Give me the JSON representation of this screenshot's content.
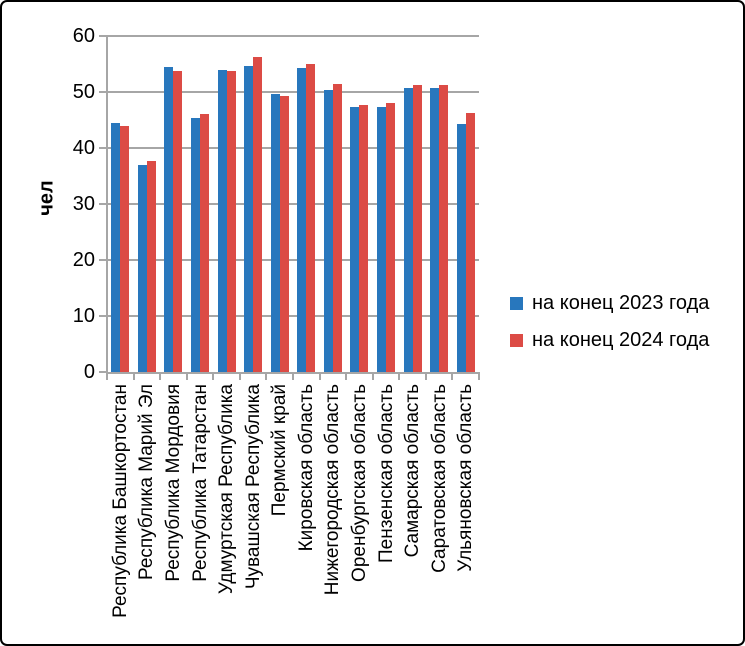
{
  "chart_data": {
    "type": "bar",
    "title": "",
    "ylabel": "чел",
    "xlabel": "",
    "ylim": [
      0,
      60
    ],
    "yticks": [
      0,
      10,
      20,
      30,
      40,
      50,
      60
    ],
    "grid": true,
    "legend_position": "right-center",
    "categories": [
      "Республика Башкортостан",
      "Республика Марий Эл",
      "Республика Мордовия",
      "Республика Татарстан",
      "Удмуртская Республика",
      "Чувашская Республика",
      "Пермский край",
      "Кировская область",
      "Нижегородская область",
      "Оренбургская область",
      "Пензенская область",
      "Самарская область",
      "Саратовская область",
      "Ульяновская область"
    ],
    "series": [
      {
        "name": "на конец 2023 года",
        "color": "#2877BD",
        "values": [
          44.4,
          37.0,
          54.5,
          45.3,
          54.0,
          54.7,
          49.6,
          54.2,
          50.3,
          47.4,
          47.3,
          50.8,
          50.7,
          44.2
        ]
      },
      {
        "name": "на конец 2024 года",
        "color": "#DC4B45",
        "values": [
          43.9,
          37.7,
          53.8,
          46.0,
          53.8,
          56.2,
          49.3,
          55.0,
          51.4,
          47.7,
          48.0,
          51.3,
          51.2,
          46.2
        ]
      }
    ],
    "gridline_color": "#A6A6A6",
    "axis_color": "#A6A6A6",
    "text_color": "#000000",
    "frame_border_color": "#000000",
    "background": "#FFFFFF"
  }
}
